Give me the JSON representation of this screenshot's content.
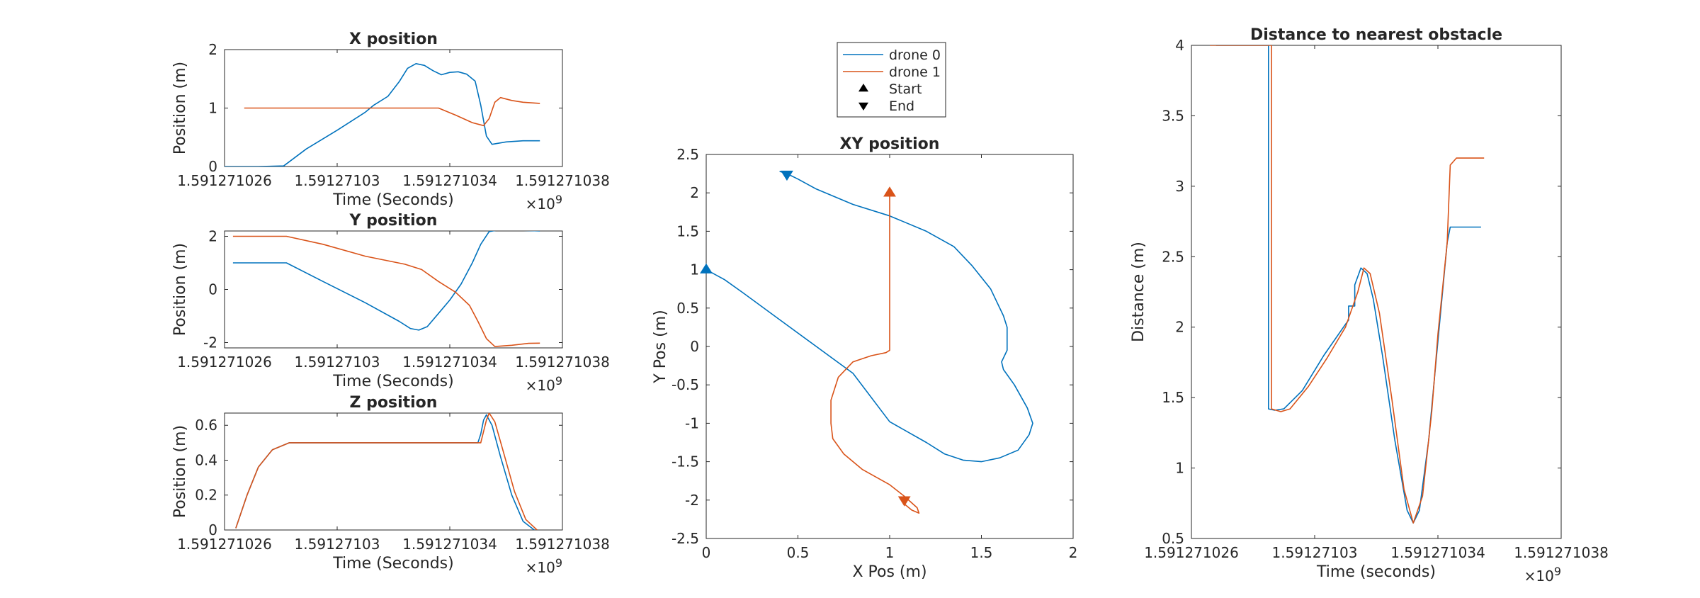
{
  "colors": {
    "drone0": "#0072BD",
    "drone1": "#D95319",
    "axis": "#262626"
  },
  "chart_data": [
    {
      "id": "x",
      "type": "line",
      "title": "X position",
      "xlabel": "Time (Seconds)",
      "ylabel": "Position (m)",
      "exponent": "×10^9",
      "xlim": [
        1.591271026,
        1.591271038
      ],
      "ylim": [
        0,
        2
      ],
      "xticks": [
        "1.591271026",
        "1.59127103",
        "1.591271034",
        "1.591271038"
      ],
      "yticks": [
        "0",
        "1",
        "2"
      ],
      "series": [
        {
          "name": "drone 0",
          "color": "drone0",
          "points": [
            [
              1.591271026,
              0.0
            ],
            [
              1.5912710272,
              0.0
            ],
            [
              1.5912710281,
              0.01
            ],
            [
              1.5912710289,
              0.3
            ],
            [
              1.59127103,
              0.62
            ],
            [
              1.591271031,
              0.93
            ],
            [
              1.5912710313,
              1.05
            ],
            [
              1.5912710318,
              1.2
            ],
            [
              1.5912710322,
              1.45
            ],
            [
              1.5912710325,
              1.68
            ],
            [
              1.5912710328,
              1.76
            ],
            [
              1.5912710331,
              1.73
            ],
            [
              1.5912710334,
              1.64
            ],
            [
              1.5912710337,
              1.57
            ],
            [
              1.591271034,
              1.61
            ],
            [
              1.5912710343,
              1.62
            ],
            [
              1.5912710346,
              1.58
            ],
            [
              1.5912710349,
              1.46
            ],
            [
              1.5912710351,
              1.05
            ],
            [
              1.5912710353,
              0.52
            ],
            [
              1.5912710355,
              0.38
            ],
            [
              1.591271036,
              0.42
            ],
            [
              1.5912710366,
              0.44
            ],
            [
              1.5912710372,
              0.44
            ]
          ]
        },
        {
          "name": "drone 1",
          "color": "drone1",
          "points": [
            [
              1.5912710267,
              1.0
            ],
            [
              1.5912710336,
              1.0
            ],
            [
              1.5912710342,
              0.88
            ],
            [
              1.5912710348,
              0.75
            ],
            [
              1.5912710352,
              0.7
            ],
            [
              1.5912710354,
              0.82
            ],
            [
              1.5912710356,
              1.1
            ],
            [
              1.5912710358,
              1.18
            ],
            [
              1.5912710362,
              1.13
            ],
            [
              1.5912710366,
              1.1
            ],
            [
              1.5912710372,
              1.08
            ]
          ]
        }
      ]
    },
    {
      "id": "y",
      "type": "line",
      "title": "Y position",
      "xlabel": "Time (Seconds)",
      "ylabel": "Position (m)",
      "exponent": "×10^9",
      "xlim": [
        1.591271026,
        1.591271038
      ],
      "ylim": [
        -2.2,
        2.2
      ],
      "xticks": [
        "1.591271026",
        "1.59127103",
        "1.591271034",
        "1.591271038"
      ],
      "yticks": [
        "-2",
        "0",
        "2"
      ],
      "series": [
        {
          "name": "drone 0",
          "color": "drone0",
          "points": [
            [
              1.5912710263,
              1.0
            ],
            [
              1.5912710282,
              1.0
            ],
            [
              1.5912710295,
              0.3
            ],
            [
              1.591271031,
              -0.5
            ],
            [
              1.5912710322,
              -1.2
            ],
            [
              1.5912710326,
              -1.47
            ],
            [
              1.5912710329,
              -1.53
            ],
            [
              1.5912710332,
              -1.4
            ],
            [
              1.5912710336,
              -0.9
            ],
            [
              1.591271034,
              -0.4
            ],
            [
              1.5912710344,
              0.2
            ],
            [
              1.5912710348,
              1.0
            ],
            [
              1.5912710351,
              1.7
            ],
            [
              1.5912710354,
              2.18
            ],
            [
              1.5912710358,
              2.25
            ],
            [
              1.5912710364,
              2.23
            ],
            [
              1.5912710372,
              2.2
            ]
          ]
        },
        {
          "name": "drone 1",
          "color": "drone1",
          "points": [
            [
              1.5912710263,
              2.0
            ],
            [
              1.5912710282,
              2.0
            ],
            [
              1.5912710295,
              1.7
            ],
            [
              1.591271031,
              1.25
            ],
            [
              1.5912710324,
              0.95
            ],
            [
              1.591271033,
              0.75
            ],
            [
              1.5912710336,
              0.3
            ],
            [
              1.5912710342,
              -0.1
            ],
            [
              1.5912710347,
              -0.6
            ],
            [
              1.591271035,
              -1.2
            ],
            [
              1.5912710353,
              -1.85
            ],
            [
              1.5912710356,
              -2.15
            ],
            [
              1.5912710362,
              -2.1
            ],
            [
              1.5912710368,
              -2.03
            ],
            [
              1.5912710372,
              -2.02
            ]
          ]
        }
      ]
    },
    {
      "id": "z",
      "type": "line",
      "title": "Z position",
      "xlabel": "Time (Seconds)",
      "ylabel": "Position (m)",
      "exponent": "×10^9",
      "xlim": [
        1.591271026,
        1.591271038
      ],
      "ylim": [
        0,
        0.67
      ],
      "xticks": [
        "1.591271026",
        "1.59127103",
        "1.591271034",
        "1.591271038"
      ],
      "yticks": [
        "0",
        "0.2",
        "0.4",
        "0.6"
      ],
      "series": [
        {
          "name": "drone 0",
          "color": "drone0",
          "points": [
            [
              1.5912710264,
              0.01
            ],
            [
              1.5912710268,
              0.2
            ],
            [
              1.5912710272,
              0.36
            ],
            [
              1.5912710277,
              0.46
            ],
            [
              1.5912710283,
              0.5
            ],
            [
              1.591271035,
              0.5
            ],
            [
              1.5912710351,
              0.55
            ],
            [
              1.5912710352,
              0.63
            ],
            [
              1.5912710353,
              0.66
            ],
            [
              1.5912710355,
              0.6
            ],
            [
              1.5912710358,
              0.42
            ],
            [
              1.5912710362,
              0.2
            ],
            [
              1.5912710366,
              0.05
            ],
            [
              1.591271037,
              0.0
            ]
          ]
        },
        {
          "name": "drone 1",
          "color": "drone1",
          "points": [
            [
              1.5912710264,
              0.01
            ],
            [
              1.5912710268,
              0.2
            ],
            [
              1.5912710272,
              0.36
            ],
            [
              1.5912710277,
              0.46
            ],
            [
              1.5912710283,
              0.5
            ],
            [
              1.5912710351,
              0.5
            ],
            [
              1.5912710353,
              0.63
            ],
            [
              1.5912710354,
              0.67
            ],
            [
              1.5912710356,
              0.62
            ],
            [
              1.5912710359,
              0.45
            ],
            [
              1.5912710363,
              0.22
            ],
            [
              1.5912710367,
              0.06
            ],
            [
              1.5912710371,
              0.0
            ]
          ]
        }
      ]
    },
    {
      "id": "xy",
      "type": "line",
      "title": "XY position",
      "xlabel": "X Pos (m)",
      "ylabel": "Y Pos (m)",
      "xlim": [
        0,
        2
      ],
      "ylim": [
        -2.5,
        2.5
      ],
      "xticks": [
        "0",
        "0.5",
        "1",
        "1.5",
        "2"
      ],
      "yticks": [
        "-2.5",
        "-2",
        "-1.5",
        "-1",
        "-0.5",
        "0",
        "0.5",
        "1",
        "1.5",
        "2",
        "2.5"
      ],
      "legend": {
        "placement": "top-center",
        "entries": [
          "drone 0",
          "drone 1",
          "Start",
          "End"
        ]
      },
      "series": [
        {
          "name": "drone 0",
          "color": "drone0",
          "points": [
            [
              0.0,
              1.0
            ],
            [
              0.1,
              0.87
            ],
            [
              0.2,
              0.7
            ],
            [
              0.4,
              0.35
            ],
            [
              0.6,
              0.0
            ],
            [
              0.8,
              -0.35
            ],
            [
              1.0,
              -0.98
            ],
            [
              1.2,
              -1.25
            ],
            [
              1.3,
              -1.4
            ],
            [
              1.4,
              -1.48
            ],
            [
              1.5,
              -1.5
            ],
            [
              1.6,
              -1.45
            ],
            [
              1.7,
              -1.35
            ],
            [
              1.76,
              -1.15
            ],
            [
              1.78,
              -1.0
            ],
            [
              1.75,
              -0.8
            ],
            [
              1.68,
              -0.5
            ],
            [
              1.62,
              -0.3
            ],
            [
              1.61,
              -0.2
            ],
            [
              1.64,
              -0.05
            ],
            [
              1.64,
              0.25
            ],
            [
              1.62,
              0.4
            ],
            [
              1.55,
              0.75
            ],
            [
              1.45,
              1.05
            ],
            [
              1.35,
              1.3
            ],
            [
              1.2,
              1.5
            ],
            [
              1.0,
              1.7
            ],
            [
              0.8,
              1.85
            ],
            [
              0.6,
              2.05
            ],
            [
              0.5,
              2.18
            ],
            [
              0.44,
              2.25
            ],
            [
              0.4,
              2.28
            ]
          ]
        },
        {
          "name": "drone 1",
          "color": "drone1",
          "points": [
            [
              1.0,
              2.0
            ],
            [
              1.0,
              -0.05
            ],
            [
              0.98,
              -0.08
            ],
            [
              0.9,
              -0.12
            ],
            [
              0.8,
              -0.2
            ],
            [
              0.72,
              -0.4
            ],
            [
              0.68,
              -0.7
            ],
            [
              0.68,
              -1.0
            ],
            [
              0.69,
              -1.2
            ],
            [
              0.75,
              -1.4
            ],
            [
              0.85,
              -1.6
            ],
            [
              1.0,
              -1.8
            ],
            [
              1.08,
              -1.95
            ],
            [
              1.15,
              -2.1
            ],
            [
              1.16,
              -2.17
            ],
            [
              1.12,
              -2.13
            ],
            [
              1.08,
              -2.05
            ],
            [
              1.07,
              -2.0
            ]
          ]
        }
      ],
      "markers": [
        {
          "kind": "Start",
          "series": "drone 0",
          "x": 0.0,
          "y": 1.0
        },
        {
          "kind": "Start",
          "series": "drone 1",
          "x": 1.0,
          "y": 2.0
        },
        {
          "kind": "End",
          "series": "drone 0",
          "x": 0.44,
          "y": 2.24
        },
        {
          "kind": "End",
          "series": "drone 1",
          "x": 1.08,
          "y": -2.0
        }
      ]
    },
    {
      "id": "dist",
      "type": "line",
      "title": "Distance to nearest obstacle",
      "xlabel": "Time (seconds)",
      "ylabel": "Distance (m)",
      "exponent": "×10^9",
      "xlim": [
        1.591271026,
        1.591271038
      ],
      "ylim": [
        0.5,
        4
      ],
      "xticks": [
        "1.591271026",
        "1.59127103",
        "1.591271034",
        "1.591271038"
      ],
      "yticks": [
        "0.5",
        "1",
        "1.5",
        "2",
        "2.5",
        "3",
        "3.5",
        "4"
      ],
      "series": [
        {
          "name": "drone 0",
          "color": "drone0",
          "points": [
            [
              1.5912710268,
              4.0
            ],
            [
              1.5912710285,
              4.0
            ],
            [
              1.5912710285,
              1.42
            ],
            [
              1.5912710287,
              1.41
            ],
            [
              1.591271029,
              1.42
            ],
            [
              1.5912710296,
              1.55
            ],
            [
              1.5912710303,
              1.8
            ],
            [
              1.591271031,
              2.02
            ],
            [
              1.5912710311,
              2.05
            ],
            [
              1.5912710311,
              2.15
            ],
            [
              1.5912710313,
              2.15
            ],
            [
              1.5912710313,
              2.3
            ],
            [
              1.5912710315,
              2.42
            ],
            [
              1.5912710317,
              2.38
            ],
            [
              1.5912710319,
              2.2
            ],
            [
              1.5912710322,
              1.8
            ],
            [
              1.5912710326,
              1.2
            ],
            [
              1.591271033,
              0.7
            ],
            [
              1.5912710332,
              0.61
            ],
            [
              1.5912710334,
              0.7
            ],
            [
              1.5912710337,
              1.2
            ],
            [
              1.591271034,
              1.9
            ],
            [
              1.5912710343,
              2.6
            ],
            [
              1.5912710344,
              2.71
            ],
            [
              1.5912710354,
              2.71
            ]
          ]
        },
        {
          "name": "drone 1",
          "color": "drone1",
          "points": [
            [
              1.5912710266,
              4.0
            ],
            [
              1.5912710286,
              4.0
            ],
            [
              1.5912710286,
              1.42
            ],
            [
              1.5912710289,
              1.4
            ],
            [
              1.5912710292,
              1.42
            ],
            [
              1.5912710298,
              1.58
            ],
            [
              1.5912710304,
              1.78
            ],
            [
              1.591271031,
              2.0
            ],
            [
              1.5912710314,
              2.25
            ],
            [
              1.5912710316,
              2.42
            ],
            [
              1.5912710318,
              2.38
            ],
            [
              1.5912710321,
              2.1
            ],
            [
              1.5912710325,
              1.5
            ],
            [
              1.5912710329,
              0.85
            ],
            [
              1.5912710332,
              0.61
            ],
            [
              1.5912710335,
              0.8
            ],
            [
              1.5912710338,
              1.4
            ],
            [
              1.591271034,
              1.95
            ],
            [
              1.5912710343,
              2.6
            ],
            [
              1.5912710344,
              3.15
            ],
            [
              1.5912710346,
              3.2
            ],
            [
              1.5912710355,
              3.2
            ]
          ]
        }
      ]
    }
  ]
}
